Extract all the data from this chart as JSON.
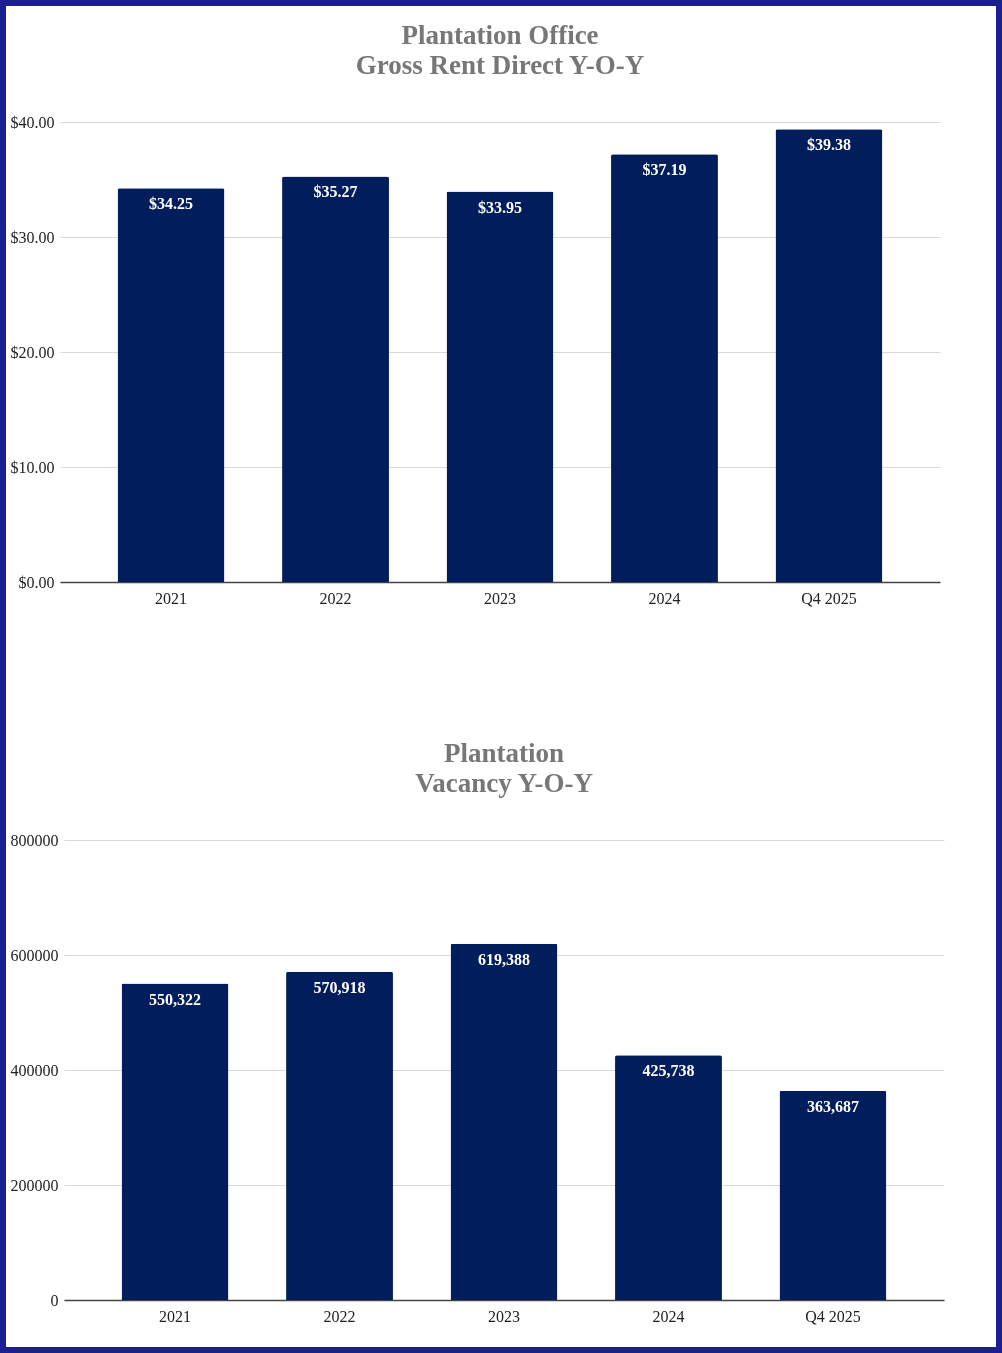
{
  "chart_data": [
    {
      "type": "bar",
      "title": "Plantation Office\nGross Rent Direct Y-O-Y",
      "categories": [
        "2021",
        "2022",
        "2023",
        "2024",
        "Q4 2025"
      ],
      "values": [
        34.25,
        35.27,
        33.95,
        37.19,
        39.38
      ],
      "value_labels": [
        "$34.25",
        "$35.27",
        "$33.95",
        "$37.19",
        "$39.38"
      ],
      "color": "#021d5b",
      "ylim": [
        0,
        40
      ],
      "yticks": [
        {
          "value": 0,
          "label": "$0.00"
        },
        {
          "value": 10,
          "label": "$10.00"
        },
        {
          "value": 20,
          "label": "$20.00"
        },
        {
          "value": 30,
          "label": "$30.00"
        },
        {
          "value": 40,
          "label": "$40.00"
        }
      ],
      "grid": "y"
    },
    {
      "type": "bar",
      "title": "Plantation\nVacancy Y-O-Y",
      "categories": [
        "2021",
        "2022",
        "2023",
        "2024",
        "Q4 2025"
      ],
      "values": [
        550322,
        570918,
        619388,
        425738,
        363687
      ],
      "value_labels": [
        "550,322",
        "570,918",
        "619,388",
        "425,738",
        "363,687"
      ],
      "color": "#021d5b",
      "ylim": [
        0,
        800000
      ],
      "yticks": [
        0,
        200000,
        400000,
        600000,
        800000
      ],
      "grid": "y"
    }
  ]
}
